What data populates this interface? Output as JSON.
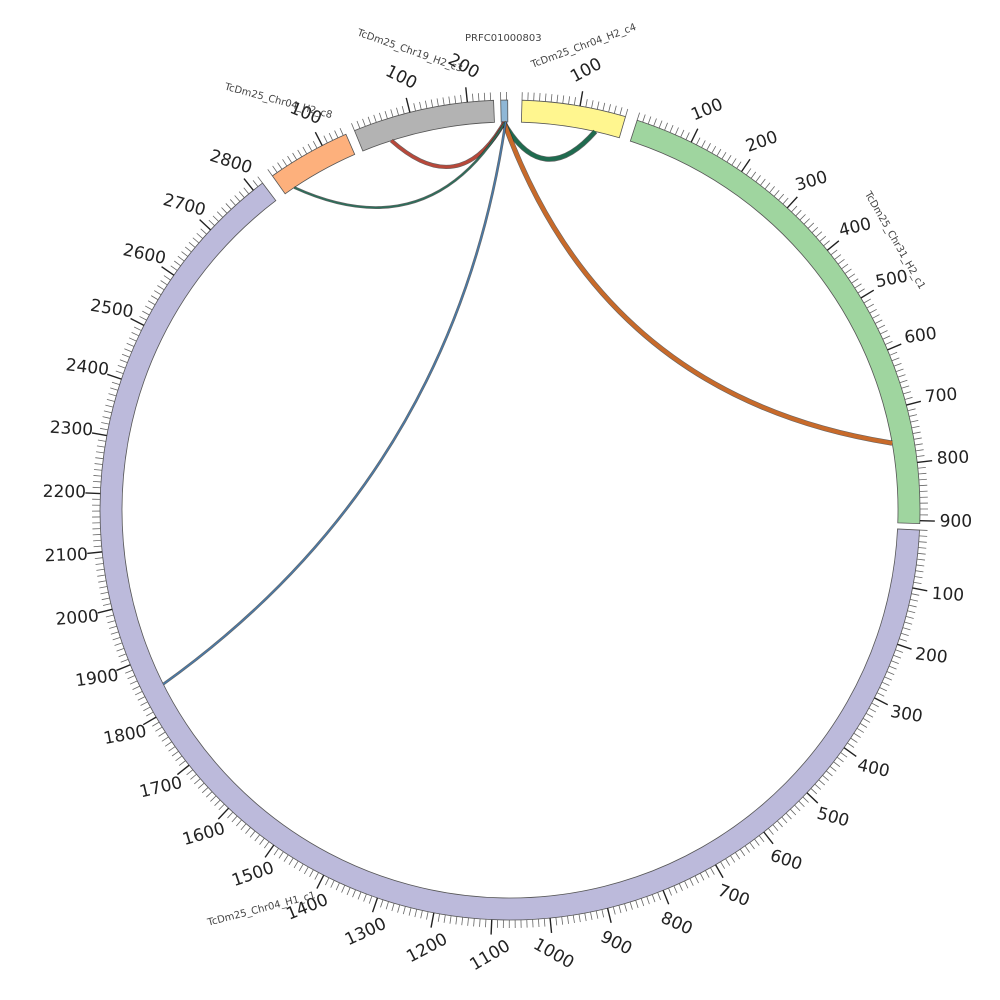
{
  "segments": [
    {
      "id": "PRFC01000803",
      "label": "PRFC01000803",
      "length": 12,
      "color": "#8fb7d6",
      "tick_labels": false
    },
    {
      "id": "c4",
      "label": "TcDm25_Chr04_H2_c4",
      "length": 180,
      "color": "#fff68f",
      "tick_labels": true
    },
    {
      "id": "c1",
      "label": "TcDm25_Chr31_H2_c1",
      "length": 905,
      "color": "#9fd59f",
      "tick_labels": true
    },
    {
      "id": "h1",
      "label": "TcDm25_Chr04_H1_c1",
      "length": 2820,
      "color": "#bcbadb",
      "tick_labels": true
    },
    {
      "id": "c8",
      "label": "TcDm25_Chr04_H2_c8",
      "length": 145,
      "color": "#fdb07c",
      "tick_labels": true
    },
    {
      "id": "c3",
      "label": "TcDm25_Chr19_H2_c3",
      "length": 245,
      "color": "#b3b3b3",
      "tick_labels": true
    }
  ],
  "tick": {
    "major_step": 100,
    "minor_step": 10
  },
  "links": [
    {
      "from": "PRFC01000803",
      "from_pos": 4,
      "to": "c4",
      "to_pos": 135,
      "color": "#1f6b4f",
      "width": 4
    },
    {
      "from": "PRFC01000803",
      "from_pos": 5,
      "to": "c1",
      "to_pos": 760,
      "color": "#c86a2a",
      "width": 4
    },
    {
      "from": "PRFC01000803",
      "from_pos": 6,
      "to": "c3",
      "to_pos": 55,
      "color": "#b8483a",
      "width": 3
    },
    {
      "from": "PRFC01000803",
      "from_pos": 7,
      "to": "c8",
      "to_pos": 20,
      "color": "#2c6e5a",
      "width": 1.5
    },
    {
      "from": "PRFC01000803",
      "from_pos": 8,
      "to": "h1",
      "to_pos": 1845,
      "color": "#4a7aa8",
      "width": 1.5
    }
  ]
}
